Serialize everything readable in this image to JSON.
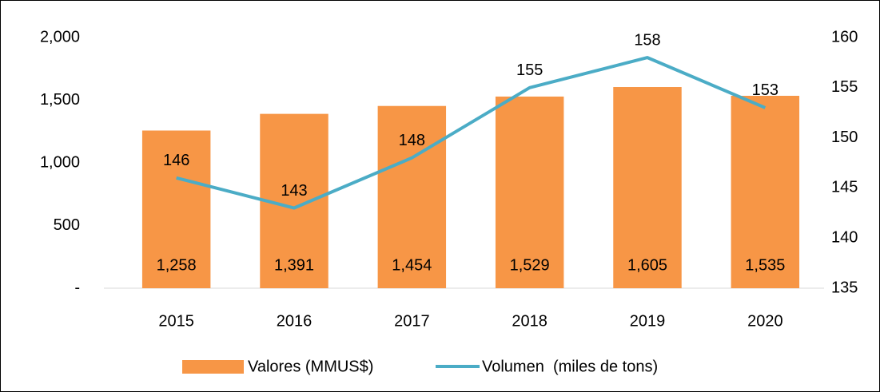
{
  "chart_data": {
    "type": "bar",
    "categories": [
      "2015",
      "2016",
      "2017",
      "2018",
      "2019",
      "2020"
    ],
    "series": [
      {
        "name": "Valores (MMUS$)",
        "type": "bar",
        "color": "#f79646",
        "values": [
          1258,
          1391,
          1454,
          1529,
          1605,
          1535
        ],
        "value_labels": [
          "1,258",
          "1,391",
          "1,454",
          "1,529",
          "1,605",
          "1,535"
        ]
      },
      {
        "name": "Volumen  (miles de tons)",
        "type": "line",
        "color": "#4bacc6",
        "axis": "y2",
        "values": [
          146,
          143,
          148,
          155,
          158,
          153
        ]
      }
    ],
    "ylim": [
      0,
      2000
    ],
    "yticks": [
      {
        "value": 0,
        "label": "-"
      },
      500,
      {
        "value": 1000,
        "label": "1,000"
      },
      {
        "value": 1500,
        "label": "1,500"
      },
      {
        "value": 2000,
        "label": "2,000"
      }
    ],
    "y2lim": [
      135,
      160
    ],
    "y2ticks": [
      135,
      140,
      145,
      150,
      155,
      160
    ],
    "legend": "bottom"
  }
}
